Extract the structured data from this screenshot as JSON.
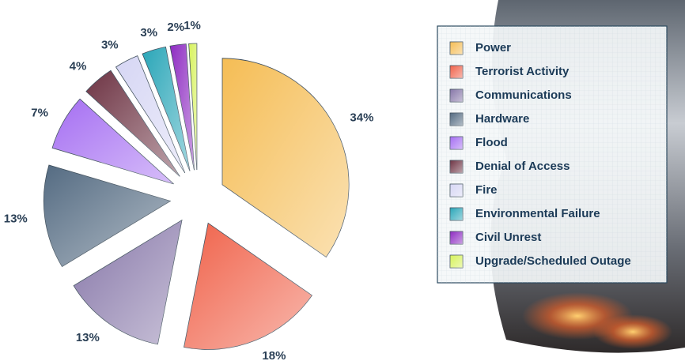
{
  "chart_data": {
    "type": "pie",
    "categories": [
      "Power",
      "Terrorist Activity",
      "Communications",
      "Hardware",
      "Flood",
      "Denial of Access",
      "Fire",
      "Environmental Failure",
      "Civil Unrest",
      "Upgrade/Scheduled Outage"
    ],
    "values": [
      34,
      18,
      13,
      13,
      7,
      4,
      3,
      3,
      2,
      1
    ],
    "value_labels": [
      "34%",
      "18%",
      "13%",
      "13%",
      "7%",
      "4%",
      "3%",
      "3%",
      "2%",
      "1%"
    ],
    "colors": [
      "#f5bd55",
      "#f0624a",
      "#8676a8",
      "#546b82",
      "#a56ef2",
      "#6e3444",
      "#d6d6f4",
      "#2aa6b8",
      "#8e2cc2",
      "#d6f25a"
    ],
    "legend": "right"
  }
}
